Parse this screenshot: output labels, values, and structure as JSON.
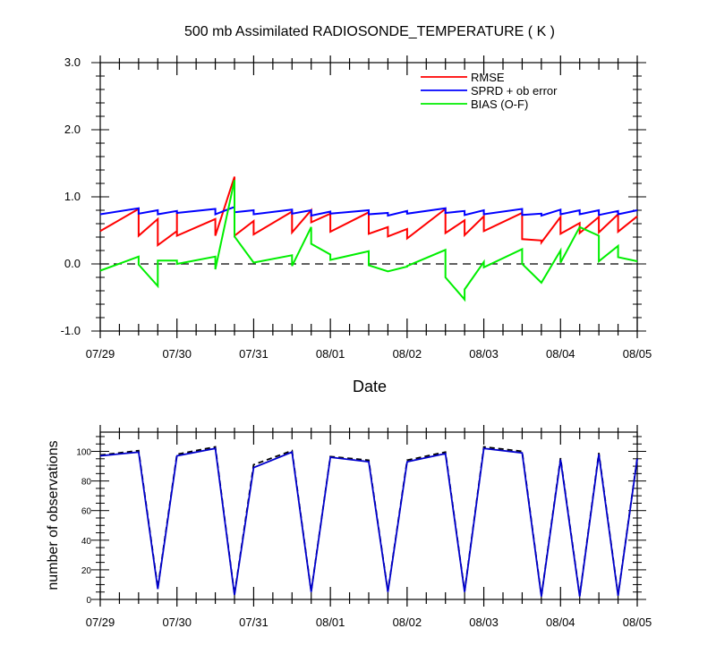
{
  "chart_data": [
    {
      "type": "line",
      "title": "500 mb Assimilated RADIOSONDE_TEMPERATURE ( K )",
      "xlabel": "Date",
      "ylabel": "",
      "xlim": [
        0,
        7
      ],
      "ylim": [
        -1.0,
        3.0
      ],
      "x_tick_labels": [
        "07/29",
        "07/30",
        "07/31",
        "08/01",
        "08/02",
        "08/03",
        "08/04",
        "08/05"
      ],
      "y_tick_labels": [
        "-1.0",
        "0.0",
        "1.0",
        "2.0",
        "3.0"
      ],
      "y_ticks": [
        -1.0,
        0.0,
        1.0,
        2.0,
        3.0
      ],
      "legend": "top-right",
      "reference_line": 0.0,
      "series": [
        {
          "name": "RMSE",
          "color": "#ff0000",
          "points": [
            [
              0.0,
              0.49
            ],
            [
              0.5,
              0.82
            ],
            [
              0.5,
              0.42
            ],
            [
              0.75,
              0.67
            ],
            [
              0.75,
              0.28
            ],
            [
              1.0,
              0.49
            ],
            [
              1.0,
              0.78
            ],
            [
              1.0,
              0.42
            ],
            [
              1.5,
              0.67
            ],
            [
              1.5,
              0.42
            ],
            [
              1.75,
              1.3
            ],
            [
              1.75,
              0.42
            ],
            [
              2.0,
              0.64
            ],
            [
              2.0,
              0.44
            ],
            [
              2.5,
              0.78
            ],
            [
              2.5,
              0.47
            ],
            [
              2.75,
              0.8
            ],
            [
              2.75,
              0.62
            ],
            [
              3.0,
              0.75
            ],
            [
              3.0,
              0.48
            ],
            [
              3.5,
              0.77
            ],
            [
              3.5,
              0.45
            ],
            [
              3.75,
              0.55
            ],
            [
              3.75,
              0.41
            ],
            [
              4.0,
              0.52
            ],
            [
              4.0,
              0.38
            ],
            [
              4.5,
              0.82
            ],
            [
              4.5,
              0.46
            ],
            [
              4.75,
              0.65
            ],
            [
              4.75,
              0.43
            ],
            [
              5.0,
              0.71
            ],
            [
              5.0,
              0.49
            ],
            [
              5.5,
              0.76
            ],
            [
              5.5,
              0.37
            ],
            [
              5.75,
              0.35
            ],
            [
              5.75,
              0.32
            ],
            [
              6.0,
              0.7
            ],
            [
              6.0,
              0.45
            ],
            [
              6.25,
              0.61
            ],
            [
              6.25,
              0.46
            ],
            [
              6.5,
              0.7
            ],
            [
              6.5,
              0.47
            ],
            [
              6.75,
              0.74
            ],
            [
              6.75,
              0.48
            ],
            [
              7.0,
              0.71
            ]
          ]
        },
        {
          "name": "SPRD + ob error",
          "color": "#0000ff",
          "points": [
            [
              0.0,
              0.74
            ],
            [
              0.5,
              0.83
            ],
            [
              0.5,
              0.75
            ],
            [
              0.75,
              0.8
            ],
            [
              0.75,
              0.74
            ],
            [
              1.0,
              0.79
            ],
            [
              1.0,
              0.76
            ],
            [
              1.5,
              0.82
            ],
            [
              1.5,
              0.74
            ],
            [
              1.75,
              0.85
            ],
            [
              1.75,
              0.77
            ],
            [
              2.0,
              0.8
            ],
            [
              2.0,
              0.74
            ],
            [
              2.5,
              0.81
            ],
            [
              2.5,
              0.75
            ],
            [
              2.75,
              0.8
            ],
            [
              2.75,
              0.72
            ],
            [
              3.0,
              0.78
            ],
            [
              3.0,
              0.75
            ],
            [
              3.5,
              0.8
            ],
            [
              3.5,
              0.74
            ],
            [
              3.75,
              0.76
            ],
            [
              3.75,
              0.72
            ],
            [
              4.0,
              0.79
            ],
            [
              4.0,
              0.75
            ],
            [
              4.5,
              0.83
            ],
            [
              4.5,
              0.76
            ],
            [
              4.75,
              0.79
            ],
            [
              4.75,
              0.73
            ],
            [
              5.0,
              0.8
            ],
            [
              5.0,
              0.74
            ],
            [
              5.5,
              0.82
            ],
            [
              5.5,
              0.73
            ],
            [
              5.75,
              0.75
            ],
            [
              5.75,
              0.72
            ],
            [
              6.0,
              0.81
            ],
            [
              6.0,
              0.74
            ],
            [
              6.25,
              0.8
            ],
            [
              6.25,
              0.74
            ],
            [
              6.5,
              0.8
            ],
            [
              6.5,
              0.73
            ],
            [
              6.75,
              0.79
            ],
            [
              6.75,
              0.74
            ],
            [
              7.0,
              0.8
            ]
          ]
        },
        {
          "name": "BIAS (O-F)",
          "color": "#00ee00",
          "points": [
            [
              0.0,
              -0.1
            ],
            [
              0.5,
              0.11
            ],
            [
              0.5,
              -0.01
            ],
            [
              0.75,
              -0.33
            ],
            [
              0.75,
              0.05
            ],
            [
              1.0,
              0.05
            ],
            [
              1.0,
              0.0
            ],
            [
              1.5,
              0.11
            ],
            [
              1.5,
              -0.08
            ],
            [
              1.75,
              1.25
            ],
            [
              1.75,
              0.41
            ],
            [
              2.0,
              0.02
            ],
            [
              2.5,
              0.13
            ],
            [
              2.5,
              -0.03
            ],
            [
              2.75,
              0.55
            ],
            [
              2.75,
              0.3
            ],
            [
              3.0,
              0.14
            ],
            [
              3.0,
              0.06
            ],
            [
              3.5,
              0.19
            ],
            [
              3.5,
              -0.02
            ],
            [
              3.75,
              -0.11
            ],
            [
              4.0,
              -0.04
            ],
            [
              4.0,
              -0.03
            ],
            [
              4.5,
              0.21
            ],
            [
              4.5,
              -0.2
            ],
            [
              4.75,
              -0.53
            ],
            [
              4.75,
              -0.38
            ],
            [
              5.0,
              0.03
            ],
            [
              5.0,
              -0.05
            ],
            [
              5.5,
              0.22
            ],
            [
              5.5,
              0.0
            ],
            [
              5.75,
              -0.28
            ],
            [
              6.0,
              0.2
            ],
            [
              6.0,
              0.02
            ],
            [
              6.25,
              0.55
            ],
            [
              6.5,
              0.42
            ],
            [
              6.5,
              0.04
            ],
            [
              6.75,
              0.27
            ],
            [
              6.75,
              0.1
            ],
            [
              7.0,
              0.04
            ]
          ]
        }
      ]
    },
    {
      "type": "line",
      "title": "",
      "xlabel": "",
      "ylabel": "number of observations",
      "xlim": [
        0,
        7
      ],
      "ylim": [
        0,
        113
      ],
      "x_tick_labels": [
        "07/29",
        "07/30",
        "07/31",
        "08/01",
        "08/02",
        "08/03",
        "08/04",
        "08/05"
      ],
      "y_tick_labels": [
        "0",
        "20",
        "40",
        "60",
        "80",
        "100"
      ],
      "y_ticks": [
        0,
        20,
        40,
        60,
        80,
        100
      ],
      "legend": "none",
      "series": [
        {
          "color": "#000000",
          "dashed": true,
          "points": [
            [
              0.0,
              97.5
            ],
            [
              0.5,
              100.5
            ],
            [
              0.75,
              8
            ],
            [
              1.0,
              98
            ],
            [
              1.5,
              103
            ],
            [
              1.75,
              3.5
            ],
            [
              2.0,
              91
            ],
            [
              2.5,
              100.5
            ],
            [
              2.75,
              5.5
            ],
            [
              3.0,
              96.5
            ],
            [
              3.5,
              94
            ],
            [
              3.75,
              5.5
            ],
            [
              4.0,
              94
            ],
            [
              4.5,
              99.5
            ],
            [
              4.75,
              5.5
            ],
            [
              5.0,
              103
            ],
            [
              5.5,
              100
            ],
            [
              5.75,
              2.5
            ],
            [
              6.0,
              95.5
            ],
            [
              6.25,
              2.5
            ],
            [
              6.5,
              99
            ],
            [
              6.75,
              3
            ],
            [
              7.0,
              95.5
            ]
          ]
        },
        {
          "color": "#0000cc",
          "dashed": false,
          "points": [
            [
              0.0,
              97
            ],
            [
              0.5,
              99.5
            ],
            [
              0.75,
              7
            ],
            [
              1.0,
              97
            ],
            [
              1.5,
              102
            ],
            [
              1.75,
              3
            ],
            [
              2.0,
              89
            ],
            [
              2.5,
              99.5
            ],
            [
              2.75,
              5
            ],
            [
              3.0,
              96
            ],
            [
              3.5,
              93
            ],
            [
              3.75,
              5
            ],
            [
              4.0,
              93
            ],
            [
              4.5,
              98.5
            ],
            [
              4.75,
              5
            ],
            [
              5.0,
              102
            ],
            [
              5.5,
              99
            ],
            [
              5.75,
              2
            ],
            [
              6.0,
              94.5
            ],
            [
              6.25,
              2
            ],
            [
              6.5,
              98
            ],
            [
              6.75,
              2.5
            ],
            [
              7.0,
              95
            ]
          ]
        }
      ]
    }
  ]
}
